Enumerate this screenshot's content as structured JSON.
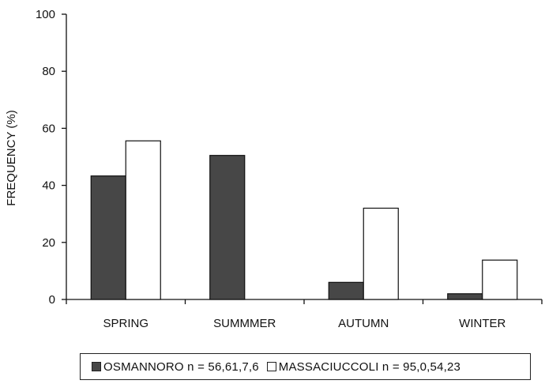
{
  "chart_data": {
    "type": "bar",
    "categories": [
      "SPRING",
      "SUMMMER",
      "AUTUMN",
      "WINTER"
    ],
    "series": [
      {
        "name": "OSMANNORO n = 56,61,7,6",
        "values": [
          43.3,
          50.5,
          6.0,
          2.0
        ],
        "color": "#474747"
      },
      {
        "name": "MASSACIUCCOLI n = 95,0,54,23",
        "values": [
          55.6,
          0,
          32.0,
          13.8
        ],
        "color": "#ffffff"
      }
    ],
    "ylabel": "FREQUENCY (%)",
    "xlabel": "",
    "ylim": [
      0,
      100
    ],
    "yticks": [
      0,
      20,
      40,
      60,
      80,
      100
    ],
    "grid": false,
    "legend_position": "bottom"
  }
}
